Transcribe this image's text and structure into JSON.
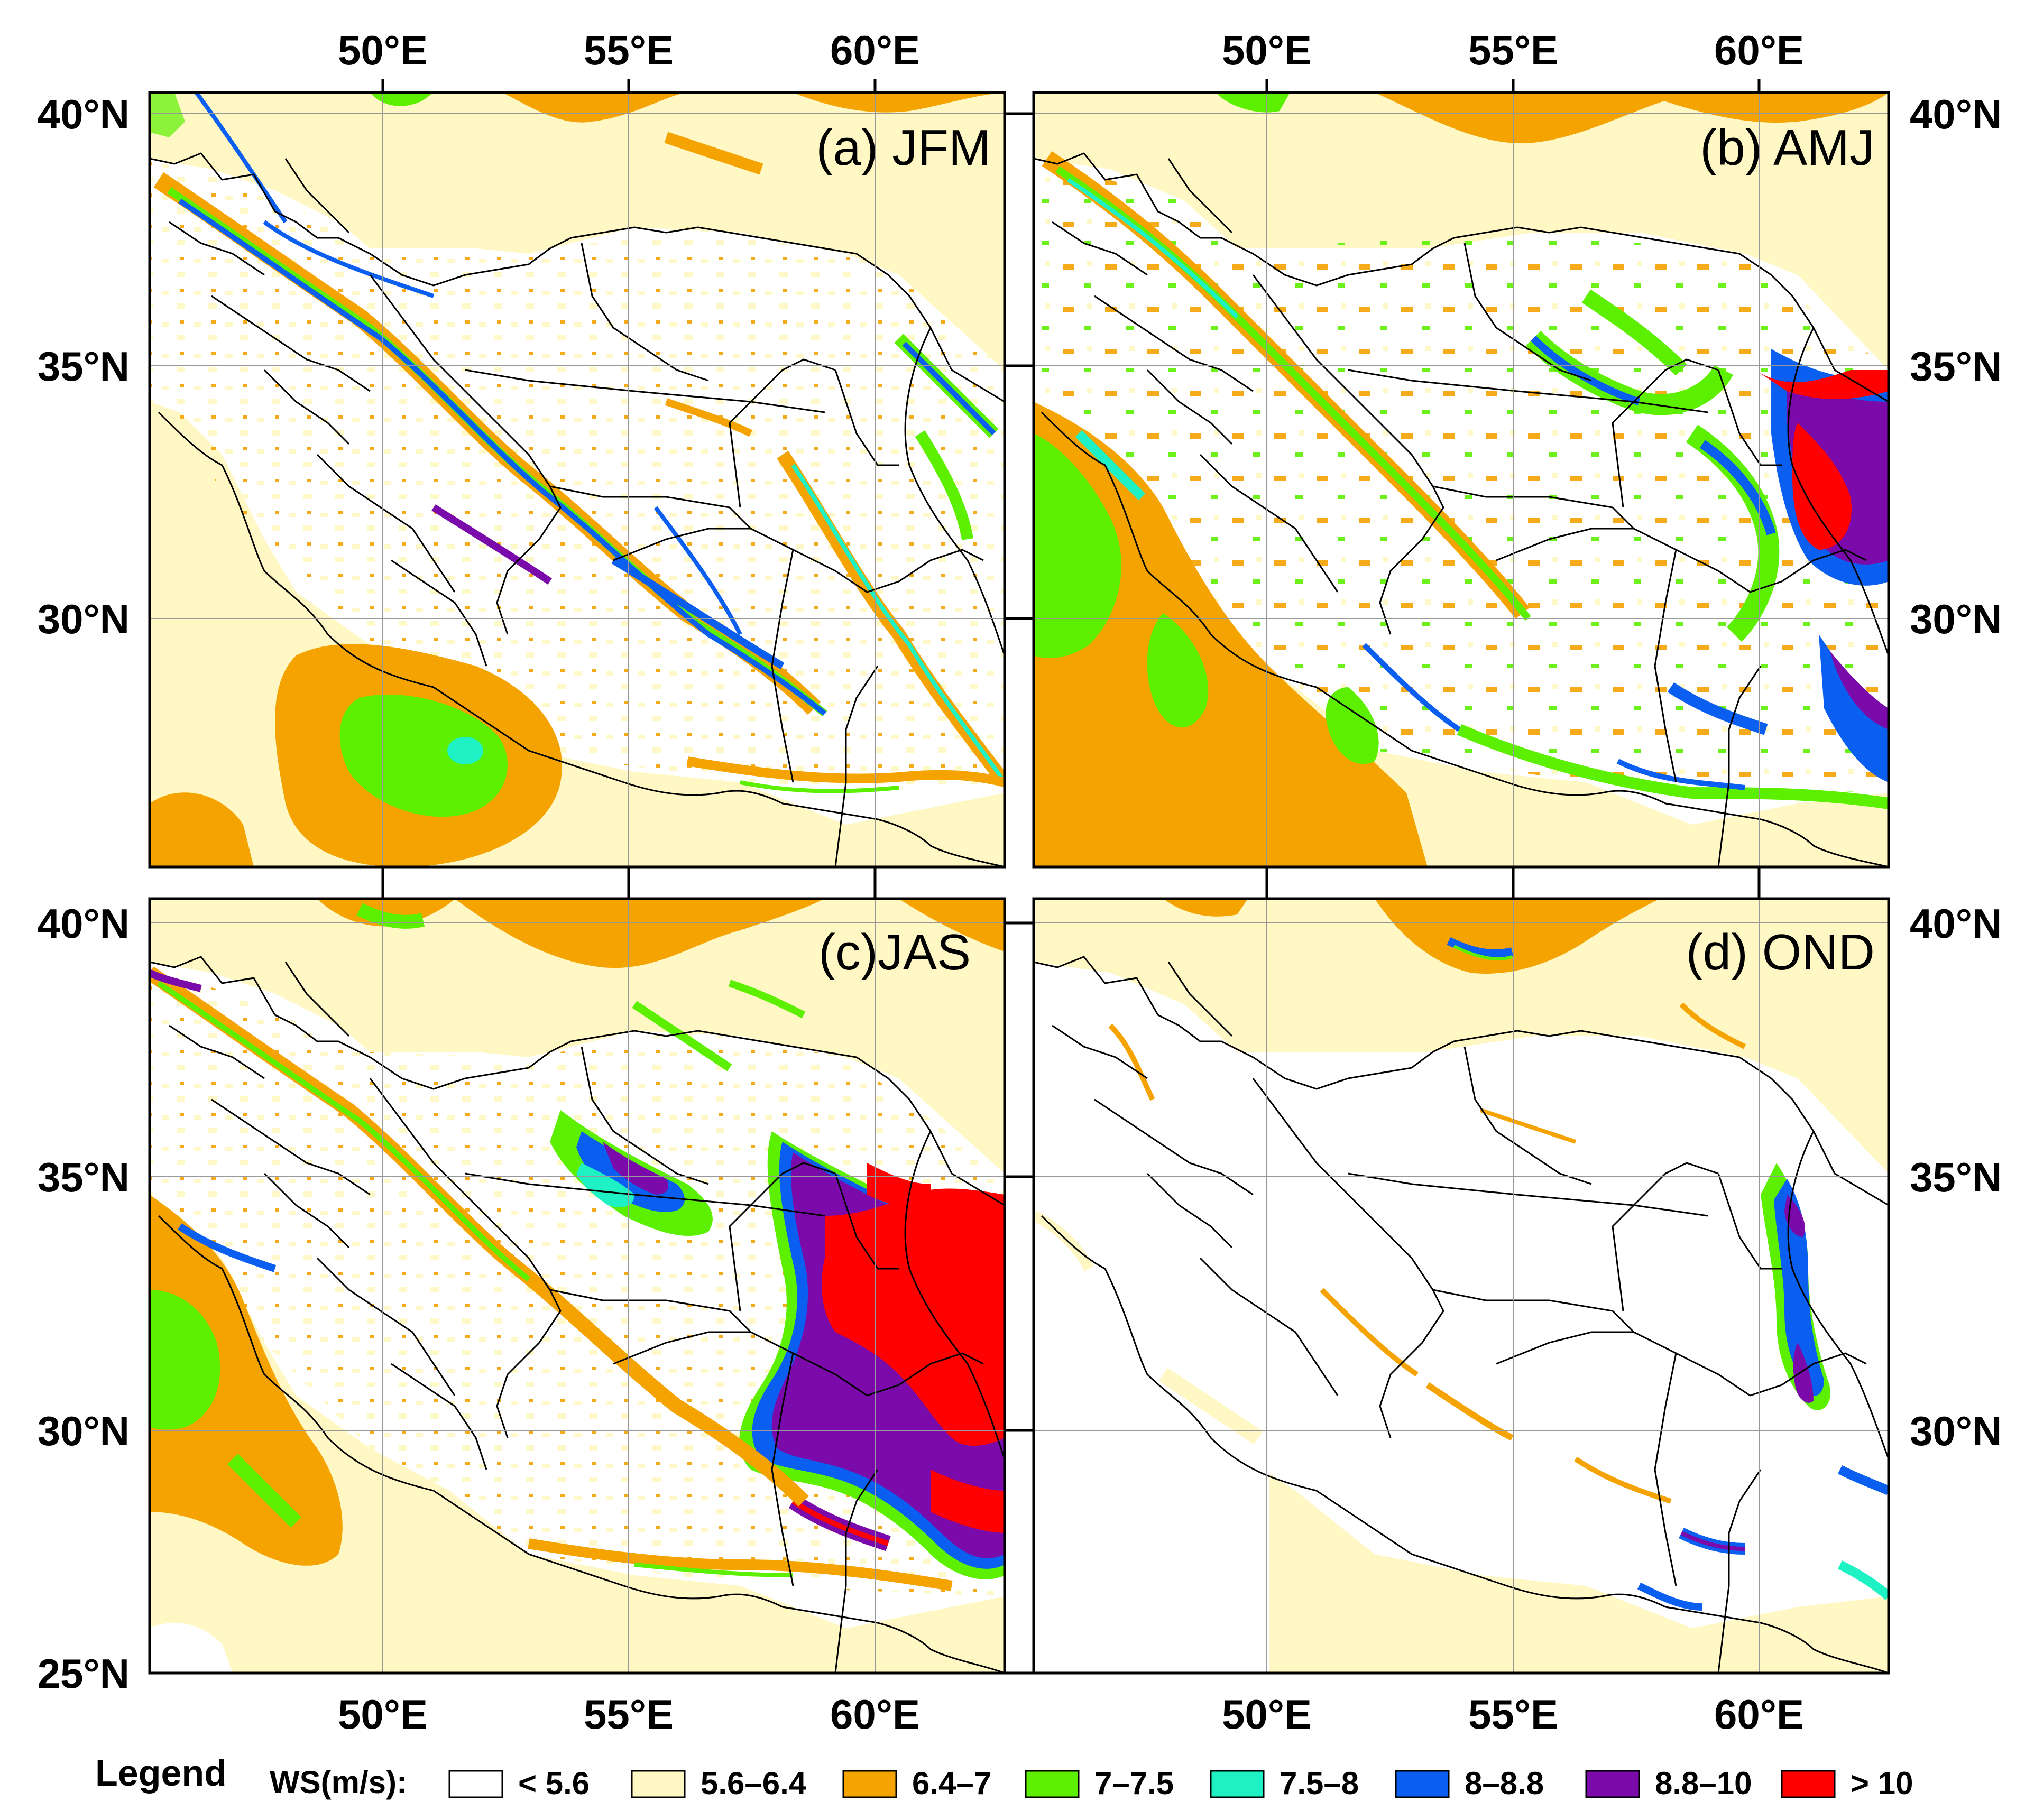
{
  "figure": {
    "axis_labels": {
      "lon": [
        "50°E",
        "55°E",
        "60°E"
      ],
      "lat": [
        "40°N",
        "35°N",
        "30°N",
        "25°N"
      ]
    },
    "lon_values": [
      50,
      55,
      60
    ],
    "lat_values": [
      40,
      35,
      30,
      25
    ],
    "lon_range": [
      45.3,
      62.8
    ],
    "lat_range": [
      25.0,
      40.4
    ]
  },
  "panels": [
    {
      "id": "a",
      "title": "(a) JFM",
      "season": "JFM"
    },
    {
      "id": "b",
      "title": "(b) AMJ",
      "season": "AMJ"
    },
    {
      "id": "c",
      "title": "(c)JAS",
      "season": "JAS"
    },
    {
      "id": "d",
      "title": "(d) OND",
      "season": "OND"
    }
  ],
  "legend": {
    "title": "Legend",
    "variable": "WS(m/s):",
    "classes": [
      {
        "label": "< 5.6",
        "color": "#ffffff"
      },
      {
        "label": "5.6–6.4",
        "color": "#fff8c4"
      },
      {
        "label": "6.4–7",
        "color": "#f5a300"
      },
      {
        "label": "7–7.5",
        "color": "#5cf000"
      },
      {
        "label": "7.5–8",
        "color": "#1ef2c4"
      },
      {
        "label": "8–8.8",
        "color": "#0a5ef0"
      },
      {
        "label": "8.8–10",
        "color": "#7a0aaa"
      },
      {
        "label": "> 10",
        "color": "#ff0000"
      }
    ]
  }
}
